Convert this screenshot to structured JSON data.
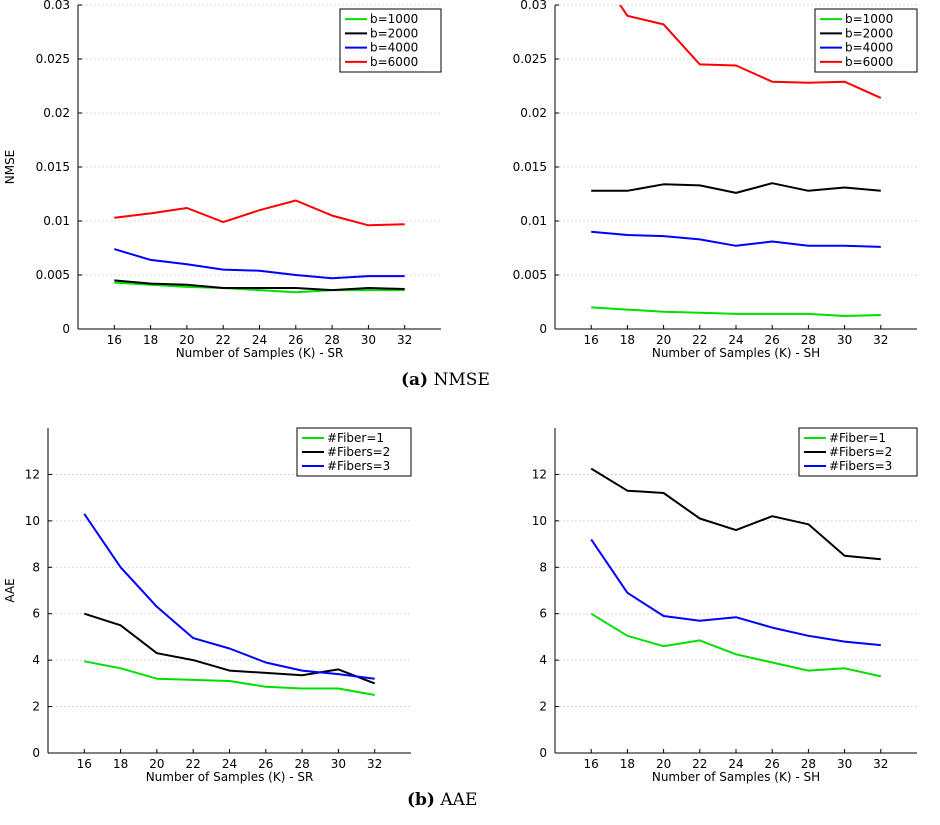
{
  "captions": [
    {
      "tag": "(a)",
      "text": "NMSE"
    },
    {
      "tag": "(b)",
      "text": "AAE"
    }
  ],
  "chart_data": [
    {
      "type": "line",
      "title": "",
      "xlabel": "Number of Samples (K) - SR",
      "ylabel": "NMSE",
      "ylim": [
        0,
        0.03
      ],
      "yticks": [
        0,
        0.005,
        0.01,
        0.015,
        0.02,
        0.025,
        0.03
      ],
      "ytick_labels": [
        "0",
        "0.005",
        "0.01",
        "0.015",
        "0.02",
        "0.025",
        "0.03"
      ],
      "xticks": [
        16,
        18,
        20,
        22,
        24,
        26,
        28,
        30,
        32
      ],
      "grid": "horizontal dotted",
      "legend_position": "top-right",
      "x": [
        16,
        18,
        20,
        22,
        24,
        26,
        28,
        30,
        32
      ],
      "series": [
        {
          "name": "b=1000",
          "color": "#00e000",
          "values": [
            0.0043,
            0.0041,
            0.0039,
            0.0038,
            0.0036,
            0.0034,
            0.0036,
            0.0036,
            0.0036
          ]
        },
        {
          "name": "b=2000",
          "color": "#000000",
          "values": [
            0.0045,
            0.0042,
            0.0041,
            0.0038,
            0.0038,
            0.0038,
            0.0036,
            0.0038,
            0.0037
          ]
        },
        {
          "name": "b=4000",
          "color": "#0000ff",
          "values": [
            0.0074,
            0.0064,
            0.006,
            0.0055,
            0.0054,
            0.005,
            0.0047,
            0.0049,
            0.0049
          ]
        },
        {
          "name": "b=6000",
          "color": "#ff0000",
          "values": [
            0.0103,
            0.0107,
            0.0112,
            0.0099,
            0.011,
            0.0119,
            0.0105,
            0.0096,
            0.0097
          ]
        }
      ]
    },
    {
      "type": "line",
      "title": "",
      "xlabel": "Number of Samples (K) - SH",
      "ylabel": "",
      "ylim": [
        0,
        0.03
      ],
      "yticks": [
        0,
        0.005,
        0.01,
        0.015,
        0.02,
        0.025,
        0.03
      ],
      "ytick_labels": [
        "0",
        "0.005",
        "0.01",
        "0.015",
        "0.02",
        "0.025",
        "0.03"
      ],
      "xticks": [
        16,
        18,
        20,
        22,
        24,
        26,
        28,
        30,
        32
      ],
      "grid": "horizontal dotted",
      "legend_position": "top-right",
      "x": [
        16,
        18,
        20,
        22,
        24,
        26,
        28,
        30,
        32
      ],
      "series": [
        {
          "name": "b=1000",
          "color": "#00e000",
          "values": [
            0.002,
            0.0018,
            0.0016,
            0.0015,
            0.0014,
            0.0014,
            0.0014,
            0.0012,
            0.0013
          ]
        },
        {
          "name": "b=2000",
          "color": "#000000",
          "values": [
            0.0128,
            0.0128,
            0.0134,
            0.0133,
            0.0126,
            0.0135,
            0.0128,
            0.0131,
            0.0128
          ]
        },
        {
          "name": "b=4000",
          "color": "#0000ff",
          "values": [
            0.009,
            0.0087,
            0.0086,
            0.0083,
            0.0077,
            0.0081,
            0.0077,
            0.0077,
            0.0076
          ]
        },
        {
          "name": "b=6000",
          "color": "#ff0000",
          "values": [
            0.034,
            0.029,
            0.0282,
            0.0245,
            0.0244,
            0.0229,
            0.0228,
            0.0229,
            0.0214
          ]
        }
      ]
    },
    {
      "type": "line",
      "title": "",
      "xlabel": "Number of Samples (K) - SR",
      "ylabel": "AAE",
      "ylim": [
        0,
        14
      ],
      "yticks": [
        0,
        2,
        4,
        6,
        8,
        10,
        12
      ],
      "ytick_labels": [
        "0",
        "2",
        "4",
        "6",
        "8",
        "10",
        "12"
      ],
      "xticks": [
        16,
        18,
        20,
        22,
        24,
        26,
        28,
        30,
        32
      ],
      "grid": "horizontal dotted",
      "legend_position": "top-right",
      "x": [
        16,
        18,
        20,
        22,
        24,
        26,
        28,
        30,
        32
      ],
      "series": [
        {
          "name": "#Fiber=1",
          "color": "#00e000",
          "values": [
            3.95,
            3.65,
            3.2,
            3.15,
            3.1,
            2.85,
            2.78,
            2.78,
            2.5
          ]
        },
        {
          "name": "#Fibers=2",
          "color": "#000000",
          "values": [
            6.0,
            5.5,
            4.3,
            4.0,
            3.55,
            3.45,
            3.35,
            3.6,
            3.0
          ]
        },
        {
          "name": "#Fibers=3",
          "color": "#0000ff",
          "values": [
            10.3,
            8.0,
            6.3,
            4.95,
            4.5,
            3.9,
            3.55,
            3.4,
            3.2
          ]
        }
      ]
    },
    {
      "type": "line",
      "title": "",
      "xlabel": "Number of Samples (K) - SH",
      "ylabel": "",
      "ylim": [
        0,
        14
      ],
      "yticks": [
        0,
        2,
        4,
        6,
        8,
        10,
        12
      ],
      "ytick_labels": [
        "0",
        "2",
        "4",
        "6",
        "8",
        "10",
        "12"
      ],
      "xticks": [
        16,
        18,
        20,
        22,
        24,
        26,
        28,
        30,
        32
      ],
      "grid": "horizontal dotted",
      "legend_position": "top-right",
      "x": [
        16,
        18,
        20,
        22,
        24,
        26,
        28,
        30,
        32
      ],
      "series": [
        {
          "name": "#Fiber=1",
          "color": "#00e000",
          "values": [
            6.0,
            5.05,
            4.6,
            4.85,
            4.25,
            3.9,
            3.55,
            3.65,
            3.3
          ]
        },
        {
          "name": "#Fibers=2",
          "color": "#000000",
          "values": [
            12.25,
            11.3,
            11.2,
            10.1,
            9.6,
            10.2,
            9.85,
            8.5,
            8.35
          ]
        },
        {
          "name": "#Fibers=3",
          "color": "#0000ff",
          "values": [
            9.2,
            6.9,
            5.9,
            5.7,
            5.85,
            5.4,
            5.05,
            4.8,
            4.65
          ]
        }
      ]
    }
  ]
}
